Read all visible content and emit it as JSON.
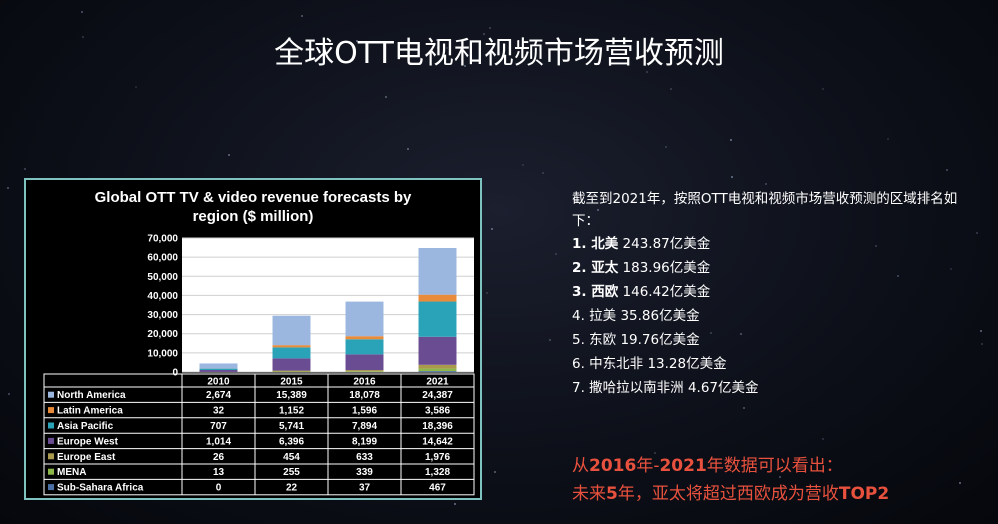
{
  "slide": {
    "title": "全球OTT电视和视频市场营收预测"
  },
  "chart_data": {
    "type": "bar",
    "stacked": true,
    "title": "Global OTT TV & video revenue forecasts by region ($ million)",
    "categories": [
      "2010",
      "2015",
      "2016",
      "2021"
    ],
    "ylim": [
      0,
      70000
    ],
    "yticks": [
      0,
      10000,
      20000,
      30000,
      40000,
      50000,
      60000,
      70000
    ],
    "ytick_labels": [
      "0",
      "10,000",
      "20,000",
      "30,000",
      "40,000",
      "50,000",
      "60,000",
      "70,000"
    ],
    "grid": true,
    "legend": "data-table-below",
    "series": [
      {
        "name": "Sub-Sahara Africa",
        "color": "#4a6fa5",
        "values": [
          0,
          22,
          37,
          467
        ],
        "labels": [
          "0",
          "22",
          "37",
          "467"
        ]
      },
      {
        "name": "MENA",
        "color": "#8fb84a",
        "values": [
          13,
          255,
          339,
          1328
        ],
        "labels": [
          "13",
          "255",
          "339",
          "1,328"
        ]
      },
      {
        "name": "Europe East",
        "color": "#a99a4e",
        "values": [
          26,
          454,
          633,
          1976
        ],
        "labels": [
          "26",
          "454",
          "633",
          "1,976"
        ]
      },
      {
        "name": "Europe West",
        "color": "#6a4c93",
        "values": [
          1014,
          6396,
          8199,
          14642
        ],
        "labels": [
          "1,014",
          "6,396",
          "8,199",
          "14,642"
        ]
      },
      {
        "name": "Asia Pacific",
        "color": "#2aa3b8",
        "values": [
          707,
          5741,
          7894,
          18396
        ],
        "labels": [
          "707",
          "5,741",
          "7,894",
          "18,396"
        ]
      },
      {
        "name": "Latin America",
        "color": "#e88b3a",
        "values": [
          32,
          1152,
          1596,
          3586
        ],
        "labels": [
          "32",
          "1,152",
          "1,596",
          "3,586"
        ]
      },
      {
        "name": "North America",
        "color": "#9bb7e0",
        "values": [
          2674,
          15389,
          18078,
          24387
        ],
        "labels": [
          "2,674",
          "15,389",
          "18,078",
          "24,387"
        ]
      }
    ],
    "table_order": [
      "North America",
      "Latin America",
      "Asia Pacific",
      "Europe West",
      "Europe East",
      "MENA",
      "Sub-Sahara Africa"
    ]
  },
  "ranking": {
    "intro": "截至到2021年，按照OTT电视和视频市场营收预测的区域排名如下：",
    "items": [
      {
        "rank": "1.",
        "region": "北美",
        "value": "243.87亿美金",
        "bold": true
      },
      {
        "rank": "2.",
        "region": "亚太",
        "value": "183.96亿美金",
        "bold": true
      },
      {
        "rank": "3.",
        "region": "西欧",
        "value": "146.42亿美金",
        "bold": true
      },
      {
        "rank": "4.",
        "region": "拉美",
        "value": "35.86亿美金",
        "bold": false
      },
      {
        "rank": "5.",
        "region": "东欧",
        "value": "19.76亿美金",
        "bold": false
      },
      {
        "rank": "6.",
        "region": "中东北非",
        "value": "13.28亿美金",
        "bold": false
      },
      {
        "rank": "7.",
        "region": "撒哈拉以南非洲",
        "value": "4.67亿美金",
        "bold": false
      }
    ]
  },
  "note": {
    "line1_a": "从",
    "line1_b": "2016",
    "line1_c": "年-",
    "line1_d": "2021",
    "line1_e": "年数据可以看出：",
    "line2_a": "未来",
    "line2_b": "5",
    "line2_c": "年，亚太将超过西欧成为营收",
    "line2_d": "TOP2"
  }
}
